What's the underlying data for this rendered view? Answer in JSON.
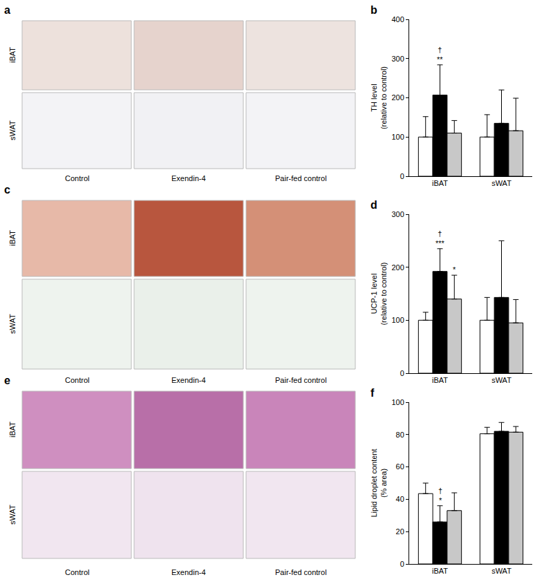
{
  "image_panels": [
    {
      "panel": "a",
      "rows": [
        "iBAT",
        "sWAT"
      ],
      "columns": [
        "Control",
        "Exendin-4",
        "Pair-fed control"
      ]
    },
    {
      "panel": "c",
      "rows": [
        "iBAT",
        "sWAT"
      ],
      "columns": [
        "Control",
        "Exendin-4",
        "Pair-fed control"
      ]
    },
    {
      "panel": "e",
      "rows": [
        "iBAT",
        "sWAT"
      ],
      "columns": [
        "Control",
        "Exendin-4",
        "Pair-fed control"
      ]
    }
  ],
  "chart_data": [
    {
      "panel": "b",
      "type": "bar",
      "y_label": [
        "TH level",
        "(relative to control)"
      ],
      "categories": [
        "iBAT",
        "sWAT"
      ],
      "series": [
        {
          "color": "#ffffff",
          "values": [
            100,
            100
          ],
          "errors": [
            52,
            57
          ]
        },
        {
          "color": "#000000",
          "values": [
            207,
            135
          ],
          "errors": [
            77,
            85
          ]
        },
        {
          "color": "#c8c8c8",
          "values": [
            110,
            116
          ],
          "errors": [
            32,
            83
          ]
        }
      ],
      "annotations": [
        {
          "category": "iBAT",
          "series": 1,
          "text": [
            "†",
            "**"
          ]
        }
      ],
      "ylim": [
        0,
        400
      ],
      "yticks": [
        0,
        100,
        200,
        300,
        400
      ],
      "grid": false
    },
    {
      "panel": "d",
      "type": "bar",
      "y_label": [
        "UCP-1 level",
        "(relative to control)"
      ],
      "categories": [
        "iBAT",
        "sWAT"
      ],
      "series": [
        {
          "color": "#ffffff",
          "values": [
            100,
            100
          ],
          "errors": [
            15,
            43
          ]
        },
        {
          "color": "#000000",
          "values": [
            192,
            143
          ],
          "errors": [
            43,
            107
          ]
        },
        {
          "color": "#c8c8c8",
          "values": [
            140,
            95
          ],
          "errors": [
            45,
            44
          ]
        }
      ],
      "annotations": [
        {
          "category": "iBAT",
          "series": 1,
          "text": [
            "†",
            "***"
          ]
        },
        {
          "category": "iBAT",
          "series": 2,
          "text": [
            "*"
          ]
        }
      ],
      "ylim": [
        0,
        300
      ],
      "yticks": [
        0,
        100,
        200,
        300
      ],
      "grid": false
    },
    {
      "panel": "f",
      "type": "bar",
      "y_label": [
        "Lipid droplet content",
        "(% area)"
      ],
      "categories": [
        "iBAT",
        "sWAT"
      ],
      "series": [
        {
          "color": "#ffffff",
          "values": [
            43.5,
            80.5
          ],
          "errors": [
            6.5,
            4
          ]
        },
        {
          "color": "#000000",
          "values": [
            26,
            82
          ],
          "errors": [
            10,
            5.5
          ]
        },
        {
          "color": "#c8c8c8",
          "values": [
            33,
            81.5
          ],
          "errors": [
            11,
            3.5
          ]
        }
      ],
      "annotations": [
        {
          "category": "iBAT",
          "series": 1,
          "text": [
            "†",
            "*"
          ]
        }
      ],
      "ylim": [
        0,
        100
      ],
      "yticks": [
        0,
        20,
        40,
        60,
        80,
        100
      ],
      "grid": false
    }
  ]
}
